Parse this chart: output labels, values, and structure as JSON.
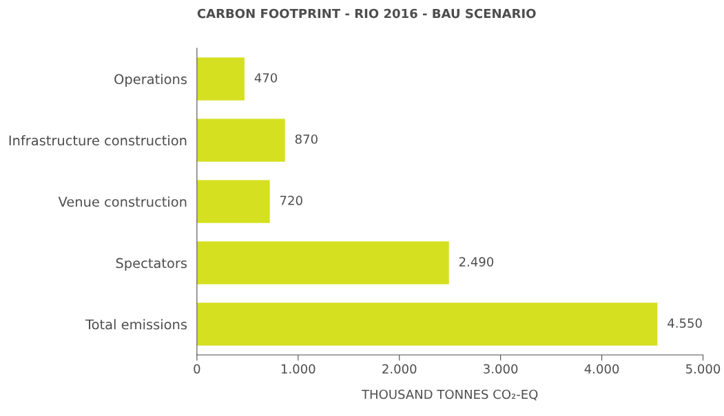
{
  "chart_data": {
    "type": "bar",
    "orientation": "horizontal",
    "title": "CARBON FOOTPRINT - RIO 2016 - BAU SCENARIO",
    "xlabel": "THOUSAND TONNES CO₂-EQ",
    "categories": [
      "Operations",
      "Infrastructure construction",
      "Venue construction",
      "Spectators",
      "Total emissions"
    ],
    "values": [
      470,
      870,
      720,
      2490,
      4550
    ],
    "value_labels": [
      "470",
      "870",
      "720",
      "2.490",
      "4.550"
    ],
    "color": "#d5e021",
    "xlim": [
      0,
      5000
    ],
    "xticks": [
      0,
      {
        "value": 1000,
        "label": "1.000"
      },
      {
        "value": 2000,
        "label": "2.000"
      },
      {
        "value": 3000,
        "label": "3.000"
      },
      {
        "value": 4000,
        "label": "4.000"
      },
      {
        "value": 5000,
        "label": "5.000"
      }
    ],
    "grid": false,
    "legend": false
  }
}
